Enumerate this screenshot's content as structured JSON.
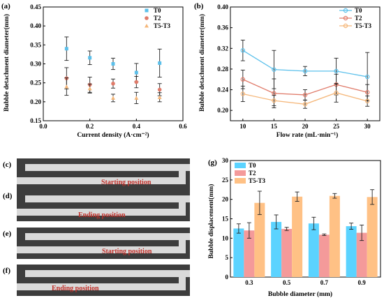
{
  "chart_data": [
    {
      "panel": "(a)",
      "type": "scatter",
      "xlabel": "Current density (A·cm⁻²)",
      "ylabel": "Bubble detachment diameter(mm)",
      "xlim": [
        0.0,
        0.6
      ],
      "ylim": [
        0.15,
        0.45
      ],
      "xticks": [
        "0.0",
        "0.2",
        "0.4",
        "0.6"
      ],
      "yticks": [
        "0.15",
        "0.20",
        "0.25",
        "0.30",
        "0.35",
        "0.40",
        "0.45"
      ],
      "legend_position": "top-right",
      "x": [
        0.1,
        0.2,
        0.3,
        0.4,
        0.5
      ],
      "series": [
        {
          "name": "T0",
          "color": "#5bc0eb",
          "values": [
            0.34,
            0.316,
            0.3,
            0.277,
            0.302
          ],
          "err": [
            0.031,
            0.018,
            0.015,
            0.024,
            0.037
          ]
        },
        {
          "name": "T2",
          "color": "#e07b6a",
          "values": [
            0.262,
            0.245,
            0.248,
            0.252,
            0.232
          ],
          "err": [
            0.028,
            0.02,
            0.012,
            0.015,
            0.016
          ]
        },
        {
          "name": "T5-T3",
          "color": "#f5b77a",
          "values": [
            0.24,
            0.235,
            0.21,
            0.21,
            0.212
          ],
          "err": [
            0.023,
            0.012,
            0.01,
            0.015,
            0.012
          ]
        }
      ]
    },
    {
      "panel": "(b)",
      "type": "line",
      "xlabel": "Flow rate (mL·min⁻¹)",
      "ylabel": "Bubble detachment diameter(mm)",
      "xlim": [
        8,
        32
      ],
      "ylim": [
        0.18,
        0.4
      ],
      "xticks": [
        "10",
        "15",
        "20",
        "25",
        "30"
      ],
      "yticks": [
        "0.20",
        "0.24",
        "0.28",
        "0.32",
        "0.36",
        "0.40"
      ],
      "legend_position": "top-right",
      "x": [
        10,
        15,
        20,
        25,
        30
      ],
      "series": [
        {
          "name": "T0",
          "color": "#5bc0eb",
          "values": [
            0.316,
            0.279,
            0.276,
            0.276,
            0.265
          ],
          "err": [
            0.02,
            0.037,
            0.009,
            0.025,
            0.047
          ]
        },
        {
          "name": "T2",
          "color": "#e07b6a",
          "values": [
            0.26,
            0.233,
            0.23,
            0.25,
            0.235
          ],
          "err": [
            0.018,
            0.028,
            0.01,
            0.02,
            0.015
          ]
        },
        {
          "name": "T5-T3",
          "color": "#f5b77a",
          "values": [
            0.232,
            0.219,
            0.212,
            0.234,
            0.218
          ],
          "err": [
            0.015,
            0.01,
            0.008,
            0.018,
            0.01
          ]
        }
      ]
    },
    {
      "panel": "(g)",
      "type": "bar",
      "xlabel": "Bubble diameter (mm)",
      "ylabel": "Bubble displacement(mm)",
      "categories": [
        "0.3",
        "0.5",
        "0.7",
        "0.9"
      ],
      "ylim": [
        0,
        30
      ],
      "yticks": [
        "0",
        "5",
        "10",
        "15",
        "20",
        "25",
        "30"
      ],
      "legend_position": "top-left",
      "series": [
        {
          "name": "T0",
          "color": "#5bd3ff",
          "values": [
            12.5,
            14.2,
            13.8,
            13.1
          ],
          "err": [
            1.2,
            1.8,
            1.6,
            0.8
          ]
        },
        {
          "name": "T2",
          "color": "#f49a9a",
          "values": [
            12.0,
            12.4,
            10.9,
            11.4
          ],
          "err": [
            2.0,
            0.4,
            0.2,
            2.0
          ]
        },
        {
          "name": "T5-T3",
          "color": "#ffc185",
          "values": [
            19.1,
            20.7,
            20.9,
            20.6
          ],
          "err": [
            3.0,
            1.2,
            0.6,
            1.9
          ]
        }
      ]
    }
  ],
  "photos": [
    {
      "panel": "(c)",
      "label": "Starting position"
    },
    {
      "panel": "(d)",
      "label": "Ending position"
    },
    {
      "panel": "(e)",
      "label": "Starting position"
    },
    {
      "panel": "(f)",
      "label": "Ending position"
    }
  ]
}
